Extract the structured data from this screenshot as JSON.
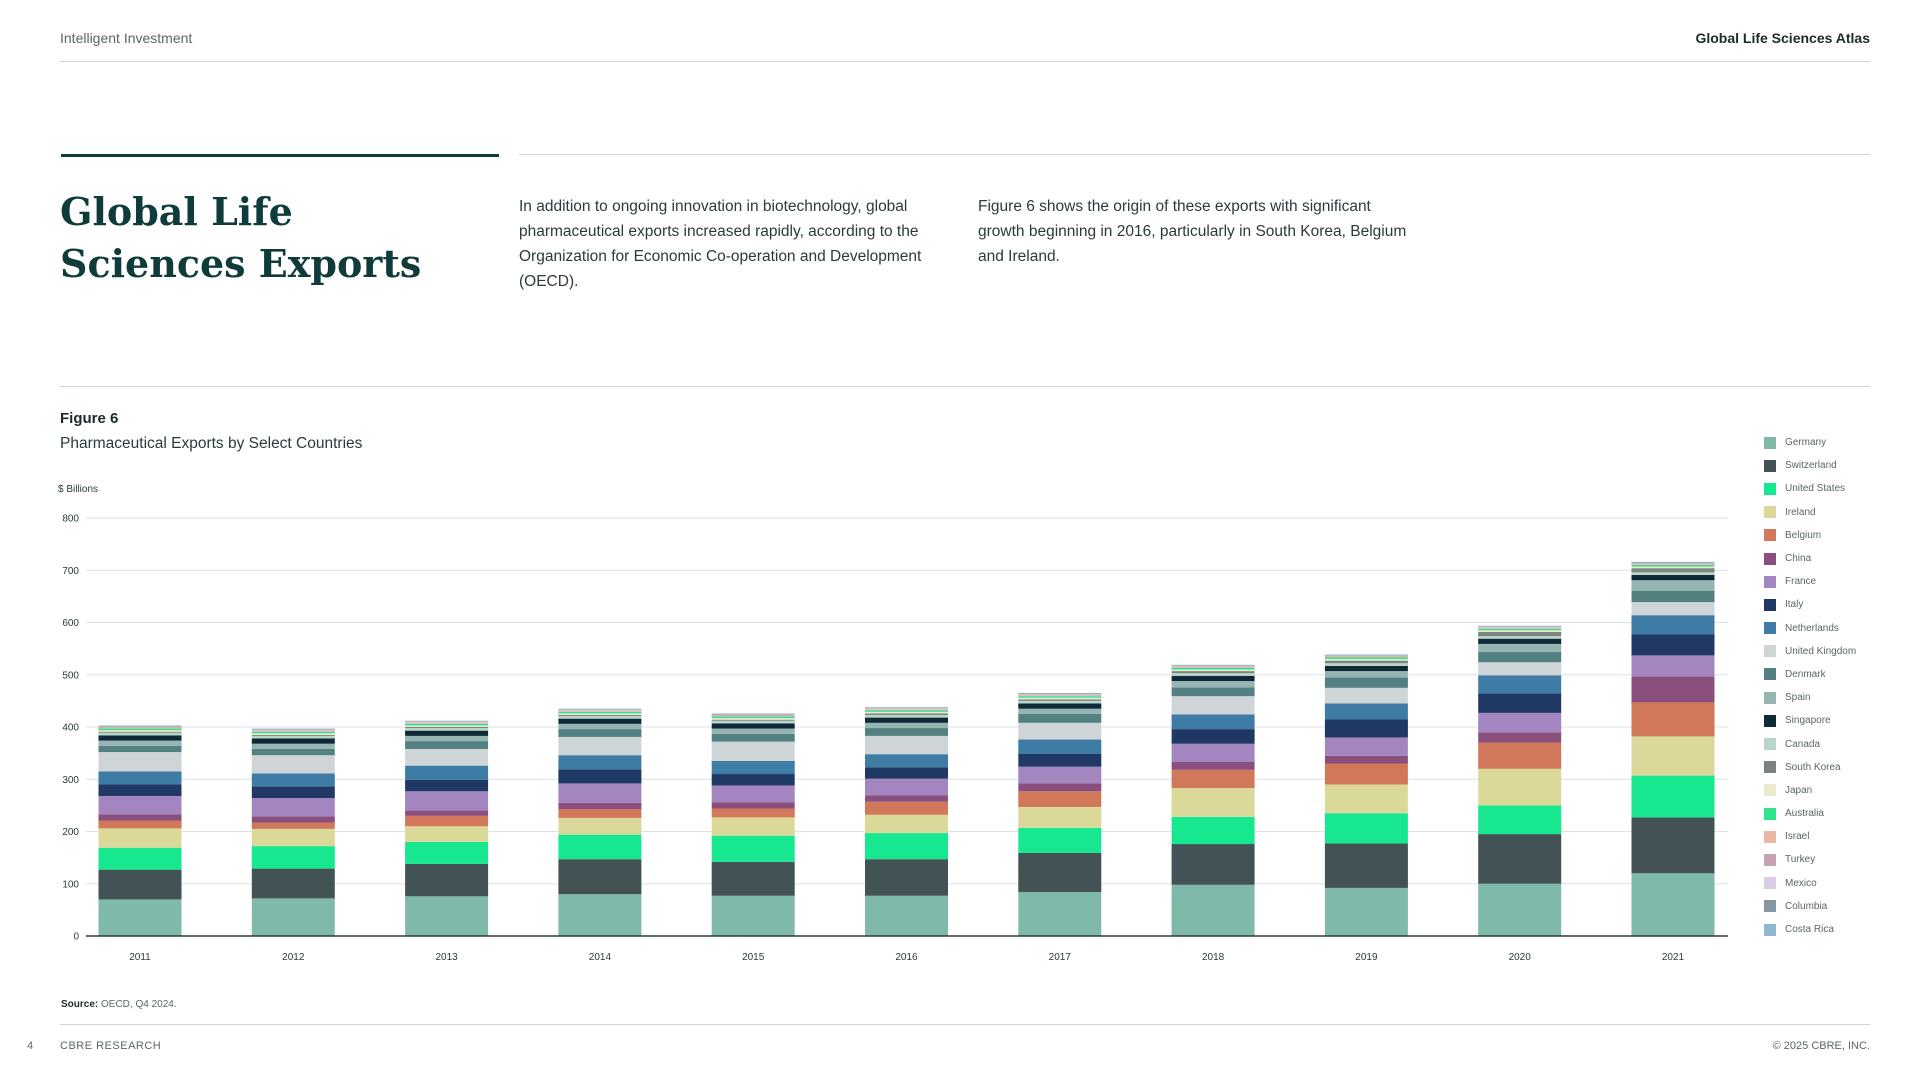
{
  "header": {
    "brand": "Intelligent Investment",
    "report": "Global Life Sciences Atlas"
  },
  "intro": {
    "title": "Global Life Sciences Exports",
    "paragraph1": "In addition to ongoing innovation in biotechnology, global pharmaceutical exports increased rapidly, according to the Organization for Economic Co-operation and Development (OECD).",
    "paragraph2": "Figure 6 shows the origin of these exports with significant growth beginning in 2016, particularly in South Korea, Belgium and Ireland."
  },
  "figure": {
    "label": "Figure 6",
    "title": "Pharmaceutical Exports by Select Countries",
    "unit": "$ Billions"
  },
  "source": {
    "label": "Source:",
    "text": "OECD, Q4 2024."
  },
  "footer": {
    "page": "4",
    "org": "CBRE RESEARCH",
    "copyright": "© 2025 CBRE, INC."
  },
  "chart_data": {
    "type": "bar",
    "stacked": true,
    "categories": [
      "2011",
      "2012",
      "2013",
      "2014",
      "2015",
      "2016",
      "2017",
      "2018",
      "2019",
      "2020",
      "2021"
    ],
    "ylim": [
      0,
      800
    ],
    "yticks": [
      0,
      100,
      200,
      300,
      400,
      500,
      600,
      700,
      800
    ],
    "ylabel": "$ Billions",
    "legend_position": "right",
    "grid": true,
    "series": [
      {
        "name": "Germany",
        "color": "#7fb9aa",
        "values": [
          70,
          72,
          76,
          80,
          77,
          77,
          84,
          98,
          92,
          100,
          120
        ]
      },
      {
        "name": "Switzerland",
        "color": "#435254",
        "values": [
          57,
          57,
          62,
          67,
          65,
          70,
          75,
          78,
          85,
          95,
          107
        ]
      },
      {
        "name": "United States",
        "color": "#17e88f",
        "values": [
          42,
          43,
          42,
          47,
          50,
          50,
          48,
          52,
          58,
          55,
          80
        ]
      },
      {
        "name": "Ireland",
        "color": "#dbd99a",
        "values": [
          37,
          33,
          30,
          32,
          35,
          35,
          40,
          55,
          55,
          70,
          75
        ]
      },
      {
        "name": "Belgium",
        "color": "#d2785a",
        "values": [
          15,
          12,
          20,
          17,
          17,
          25,
          30,
          35,
          40,
          50,
          65
        ]
      },
      {
        "name": "China",
        "color": "#8a4f7d",
        "values": [
          12,
          12,
          10,
          12,
          12,
          12,
          15,
          15,
          15,
          20,
          50
        ]
      },
      {
        "name": "France",
        "color": "#a386c0",
        "values": [
          35,
          35,
          37,
          37,
          32,
          32,
          32,
          35,
          35,
          37,
          40
        ]
      },
      {
        "name": "Italy",
        "color": "#1f3864",
        "values": [
          22,
          22,
          22,
          27,
          22,
          22,
          25,
          28,
          35,
          37,
          40
        ]
      },
      {
        "name": "Netherlands",
        "color": "#3e7ca6",
        "values": [
          25,
          25,
          27,
          27,
          25,
          25,
          27,
          28,
          30,
          35,
          37
        ]
      },
      {
        "name": "United Kingdom",
        "color": "#cfd5d7",
        "values": [
          37,
          35,
          32,
          35,
          37,
          35,
          32,
          35,
          30,
          25,
          25
        ]
      },
      {
        "name": "Denmark",
        "color": "#538080",
        "values": [
          12,
          12,
          15,
          15,
          15,
          15,
          17,
          17,
          20,
          20,
          22
        ]
      },
      {
        "name": "Spain",
        "color": "#96b5b2",
        "values": [
          10,
          10,
          10,
          10,
          10,
          10,
          10,
          12,
          12,
          15,
          20
        ]
      },
      {
        "name": "Singapore",
        "color": "#0e2a36",
        "values": [
          10,
          10,
          10,
          10,
          10,
          10,
          10,
          10,
          10,
          10,
          10
        ]
      },
      {
        "name": "Canada",
        "color": "#b9d4c9",
        "values": [
          5,
          5,
          5,
          5,
          5,
          5,
          5,
          5,
          5,
          5,
          5
        ]
      },
      {
        "name": "South Korea",
        "color": "#7c8482",
        "values": [
          2,
          2,
          2,
          2,
          2,
          3,
          3,
          4,
          5,
          8,
          8
        ]
      },
      {
        "name": "Japan",
        "color": "#ede9cf",
        "values": [
          3,
          3,
          3,
          3,
          3,
          3,
          3,
          3,
          3,
          3,
          3
        ]
      },
      {
        "name": "Australia",
        "color": "#2ee58e",
        "values": [
          3,
          3,
          3,
          3,
          3,
          3,
          3,
          3,
          3,
          3,
          3
        ]
      },
      {
        "name": "Israel",
        "color": "#eab7a4",
        "values": [
          2,
          2,
          2,
          2,
          2,
          2,
          2,
          2,
          2,
          2,
          2
        ]
      },
      {
        "name": "Turkey",
        "color": "#c5a1b2",
        "values": [
          1,
          1,
          1,
          1,
          1,
          1,
          1,
          1,
          1,
          1,
          1
        ]
      },
      {
        "name": "Mexico",
        "color": "#d8cce6",
        "values": [
          1,
          1,
          1,
          1,
          1,
          1,
          1,
          1,
          1,
          1,
          1
        ]
      },
      {
        "name": "Columbia",
        "color": "#8596a4",
        "values": [
          1,
          1,
          1,
          1,
          1,
          1,
          1,
          1,
          1,
          1,
          1
        ]
      },
      {
        "name": "Costa Rica",
        "color": "#8fb7cf",
        "values": [
          1,
          1,
          1,
          1,
          1,
          1,
          1,
          1,
          1,
          1,
          1
        ]
      }
    ]
  }
}
